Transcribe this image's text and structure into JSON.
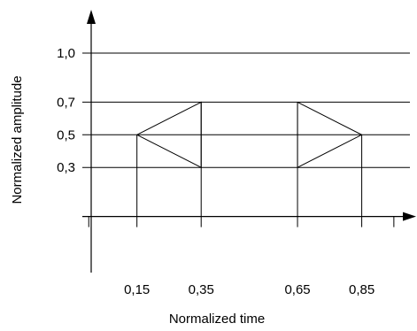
{
  "chart_data": {
    "type": "line",
    "title": "",
    "xlabel": "Normalized time",
    "ylabel": "Normalized amplitude",
    "x_ticks": [
      {
        "value": 0.15,
        "label": "0,15"
      },
      {
        "value": 0.35,
        "label": "0,35"
      },
      {
        "value": 0.65,
        "label": "0,65"
      },
      {
        "value": 0.85,
        "label": "0,85"
      }
    ],
    "y_ticks": [
      {
        "value": 0.3,
        "label": "0,3"
      },
      {
        "value": 0.5,
        "label": "0,5"
      },
      {
        "value": 0.7,
        "label": "0,7"
      },
      {
        "value": 1.0,
        "label": "1,0"
      }
    ],
    "xlim": [
      -0.02,
      1.0
    ],
    "ylim": [
      -0.3,
      1.26
    ],
    "grid": true,
    "series": [
      {
        "x": [
          0.15,
          0.35,
          0.35,
          0.15
        ],
        "y": [
          0.5,
          0.7,
          0.3,
          0.5
        ]
      },
      {
        "x": [
          0.65,
          0.85,
          0.65,
          0.65
        ],
        "y": [
          0.7,
          0.5,
          0.3,
          0.7
        ]
      }
    ],
    "vertical_lines": [
      0.15,
      0.35,
      0.65,
      0.85
    ]
  }
}
